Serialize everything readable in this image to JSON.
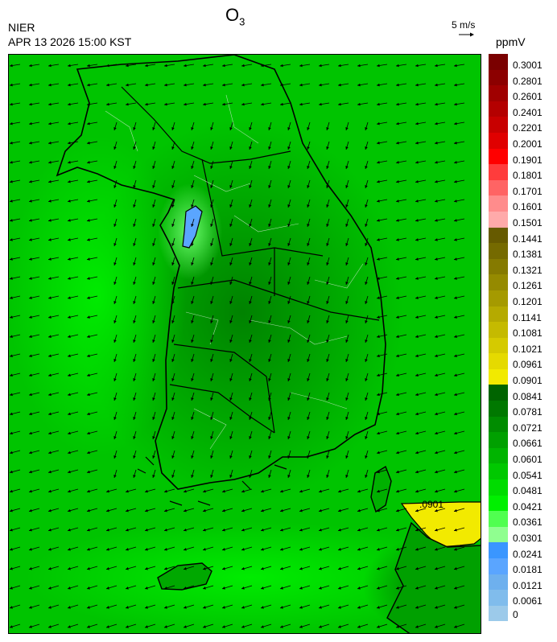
{
  "header": {
    "title_main": "O",
    "title_sub": "3",
    "agency": "NIER",
    "timestamp": "APR 13 2026 15:00 KST",
    "wind_ref_label": "5 m/s",
    "unit": "ppmV"
  },
  "map": {
    "contour_label": ".0901",
    "wind_field": {
      "predominant_direction": "toward west-southwest over sea, southward over land"
    }
  },
  "legend": {
    "labels": [
      "0.3001",
      "0.2801",
      "0.2601",
      "0.2401",
      "0.2201",
      "0.2001",
      "0.1901",
      "0.1801",
      "0.1701",
      "0.1601",
      "0.1501",
      "0.1441",
      "0.1381",
      "0.1321",
      "0.1261",
      "0.1201",
      "0.1141",
      "0.1081",
      "0.1021",
      "0.0961",
      "0.0901",
      "0.0841",
      "0.0781",
      "0.0721",
      "0.0661",
      "0.0601",
      "0.0541",
      "0.0481",
      "0.0421",
      "0.0361",
      "0.0301",
      "0.0241",
      "0.0181",
      "0.0121",
      "0.0061",
      "0"
    ],
    "colors": [
      "#7a0000",
      "#8c0000",
      "#a00000",
      "#b40000",
      "#c80000",
      "#e00000",
      "#ff0000",
      "#ff3c3c",
      "#ff6464",
      "#ff8c8c",
      "#ffaaaa",
      "#665a00",
      "#756a00",
      "#857a00",
      "#958a00",
      "#a59a00",
      "#b5aa00",
      "#c5ba00",
      "#d5ca00",
      "#e5da00",
      "#f2ea00",
      "#006400",
      "#007800",
      "#008c00",
      "#00a000",
      "#00b400",
      "#00c800",
      "#00dc00",
      "#00f000",
      "#50ff50",
      "#90ff90",
      "#3a96ff",
      "#5aa5ff",
      "#6eb0ee",
      "#80bcec",
      "#9ccaea"
    ]
  }
}
